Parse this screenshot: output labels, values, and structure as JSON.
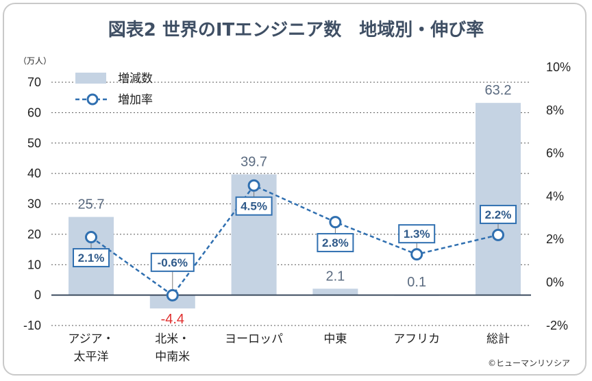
{
  "title": "図表2 世界のITエンジニア数　地域別・伸び率",
  "credit": "©ヒューマンリソシア",
  "chart_data": {
    "type": "bar",
    "categories": [
      [
        "アジア・",
        "太平洋"
      ],
      [
        "北米・",
        "中南米"
      ],
      [
        "ヨーロッパ"
      ],
      [
        "中東"
      ],
      [
        "アフリカ"
      ],
      [
        "総計"
      ]
    ],
    "series": [
      {
        "name": "増減数",
        "type": "bar",
        "axis": "left",
        "values": [
          25.7,
          -4.4,
          39.7,
          2.1,
          0.1,
          63.2
        ]
      },
      {
        "name": "増加率",
        "type": "line",
        "axis": "right",
        "values": [
          2.1,
          -0.6,
          4.5,
          2.8,
          1.3,
          2.2
        ]
      }
    ],
    "value_labels": [
      "25.7",
      "-4.4",
      "39.7",
      "2.1",
      "0.1",
      "63.2"
    ],
    "rate_labels": [
      "2.1%",
      "-0.6%",
      "4.5%",
      "2.8%",
      "1.3%",
      "2.2%"
    ],
    "left_axis": {
      "label": "（万人）",
      "ylim": [
        -10,
        70
      ],
      "ticks": [
        "-10",
        "0",
        "10",
        "20",
        "30",
        "40",
        "50",
        "60",
        "70"
      ]
    },
    "right_axis": {
      "ylim": [
        -2,
        10
      ],
      "ticks": [
        "-2%",
        "0%",
        "2%",
        "4%",
        "6%",
        "8%",
        "10%"
      ]
    },
    "legend": [
      "増減数",
      "増加率"
    ],
    "colors": {
      "bar": "#c5d3e3",
      "line": "#2f6fb0",
      "box": "#2f6fb0",
      "axis": "#3b4a5e",
      "grid": "#555555",
      "negative": "#e0302f"
    }
  }
}
